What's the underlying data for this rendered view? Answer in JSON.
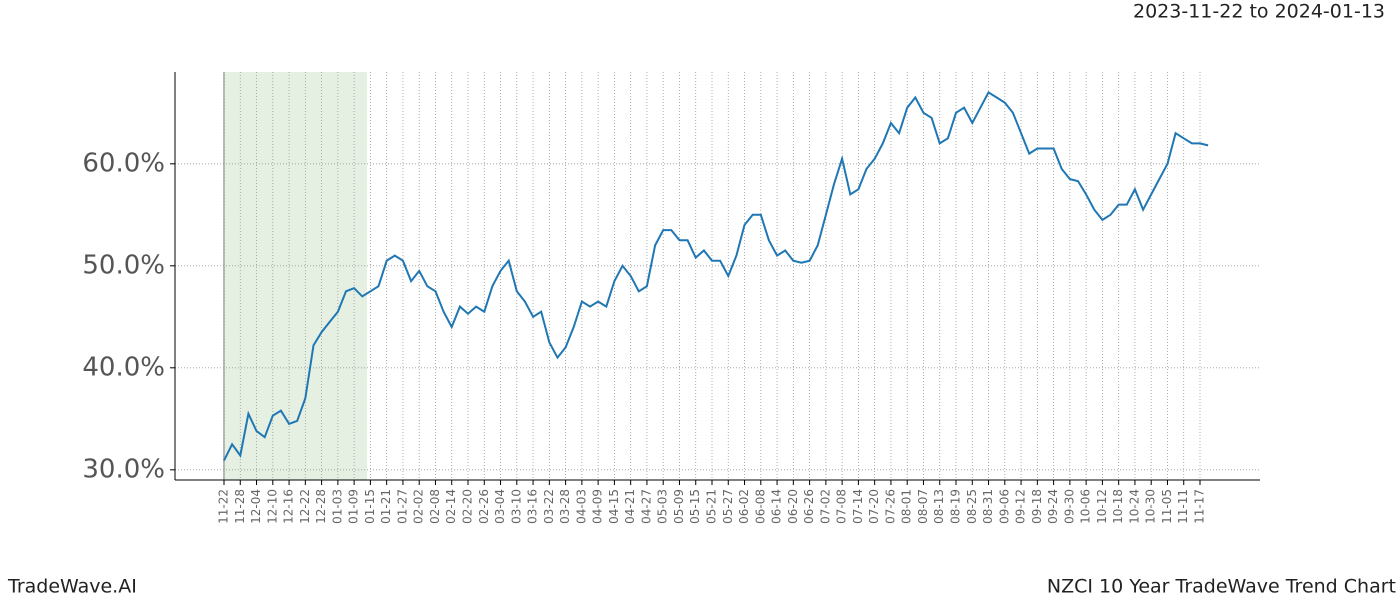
{
  "chart_data": {
    "type": "line",
    "title": "NZCI 10 Year TradeWave Trend Chart",
    "subtitle": "2023-11-22 to 2024-01-13",
    "watermark": "TradeWave.AI",
    "categories": [
      "11-22",
      null,
      "11-28",
      null,
      "12-04",
      null,
      "12-10",
      null,
      "12-16",
      null,
      "12-22",
      null,
      "12-28",
      null,
      "01-03",
      null,
      "01-09",
      null,
      "01-15",
      null,
      "01-21",
      null,
      "01-27",
      null,
      "02-02",
      null,
      "02-08",
      null,
      "02-14",
      null,
      "02-20",
      null,
      "02-26",
      null,
      "03-04",
      null,
      "03-10",
      null,
      "03-16",
      null,
      "03-22",
      null,
      "03-28",
      null,
      "04-03",
      null,
      "04-09",
      null,
      "04-15",
      null,
      "04-21",
      null,
      "04-27",
      null,
      "05-03",
      null,
      "05-09",
      null,
      "05-15",
      null,
      "05-21",
      null,
      "05-27",
      null,
      "06-02",
      null,
      "06-08",
      null,
      "06-14",
      null,
      "06-20",
      null,
      "06-26",
      null,
      "07-02",
      null,
      "07-08",
      null,
      "07-14",
      null,
      "07-20",
      null,
      "07-26",
      null,
      "08-01",
      null,
      "08-07",
      null,
      "08-13",
      null,
      "08-19",
      null,
      "08-25",
      null,
      "08-31",
      null,
      "09-06",
      null,
      "09-12",
      null,
      "09-18",
      null,
      "09-24",
      null,
      "09-30",
      null,
      "10-06",
      null,
      "10-12",
      null,
      "10-18",
      null,
      "10-24",
      null,
      "10-30",
      null,
      "11-05",
      null,
      "11-11",
      null,
      "11-17",
      null
    ],
    "series": [
      {
        "color": "#1f77b4",
        "values": [
          30.9,
          32.5,
          31.4,
          35.5,
          33.8,
          33.2,
          35.3,
          35.8,
          34.5,
          34.8,
          37,
          42.2,
          43.5,
          44.5,
          45.5,
          47.5,
          47.8,
          47.0,
          47.5,
          48,
          50.5,
          51,
          50.5,
          48.5,
          49.5,
          48,
          47.5,
          45.5,
          44,
          46,
          45.3,
          46,
          45.5,
          48,
          49.5,
          50.5,
          47.5,
          46.5,
          45,
          45.5,
          42.5,
          41,
          42,
          44,
          46.5,
          46,
          46.5,
          46,
          48.5,
          50,
          49,
          47.5,
          48,
          52,
          53.5,
          53.5,
          52.5,
          52.5,
          50.8,
          51.5,
          50.5,
          50.5,
          49,
          51,
          54,
          55,
          55,
          52.5,
          51,
          51.5,
          50.5,
          50.3,
          50.5,
          52,
          55,
          58,
          60.5,
          57,
          57.5,
          59.5,
          60.5,
          62,
          64,
          63,
          65.5,
          66.5,
          65,
          64.5,
          62,
          62.5,
          65,
          65.5,
          64,
          65.5,
          67,
          66.5,
          66,
          65,
          63,
          61,
          61.5,
          61.5,
          61.5,
          59.5,
          58.5,
          58.3,
          57,
          55.5,
          54.5,
          55,
          56,
          56,
          57.5,
          55.5,
          57,
          58.5,
          60,
          63,
          62.5,
          62,
          62,
          61.8
        ]
      }
    ],
    "ylim": [
      29.0,
      69.0
    ],
    "yticks": [
      {
        "value": 30,
        "label": "30.0%"
      },
      {
        "value": 40,
        "label": "40.0%"
      },
      {
        "value": 50,
        "label": "50.0%"
      },
      {
        "value": 60,
        "label": "60.0%"
      }
    ],
    "grid": true
  }
}
